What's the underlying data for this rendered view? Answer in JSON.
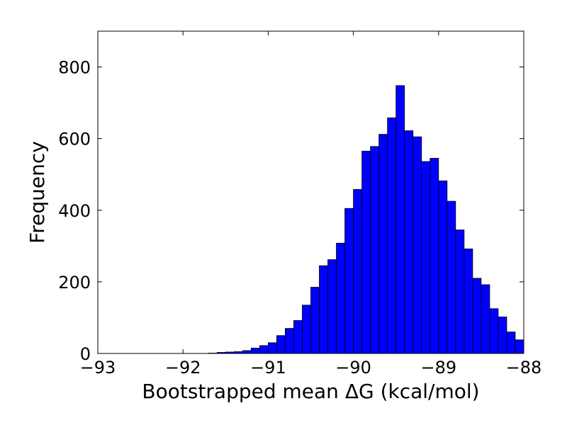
{
  "chart_data": {
    "type": "bar",
    "title": "",
    "xlabel": "Bootstrapped mean ΔG (kcal/mol)",
    "ylabel": "Frequency",
    "xlim": [
      -93,
      -88
    ],
    "ylim": [
      0,
      900
    ],
    "x_ticks": [
      -93,
      -92,
      -91,
      -90,
      -89,
      -88
    ],
    "x_tick_labels": [
      "−93",
      "−92",
      "−91",
      "−90",
      "−89",
      "−88"
    ],
    "y_ticks": [
      0,
      200,
      400,
      600,
      800
    ],
    "y_tick_labels": [
      "0",
      "200",
      "400",
      "600",
      "800"
    ],
    "bar_color": "#0000ff",
    "edge_color": "#000000",
    "grid": false,
    "bins": [
      {
        "x0": -91.7,
        "x1": -91.6,
        "count": 1
      },
      {
        "x0": -91.6,
        "x1": -91.5,
        "count": 3
      },
      {
        "x0": -91.5,
        "x1": -91.4,
        "count": 4
      },
      {
        "x0": -91.4,
        "x1": -91.3,
        "count": 5
      },
      {
        "x0": -91.3,
        "x1": -91.2,
        "count": 8
      },
      {
        "x0": -91.2,
        "x1": -91.1,
        "count": 15
      },
      {
        "x0": -91.1,
        "x1": -91.0,
        "count": 22
      },
      {
        "x0": -91.0,
        "x1": -90.9,
        "count": 30
      },
      {
        "x0": -90.9,
        "x1": -90.8,
        "count": 50
      },
      {
        "x0": -90.8,
        "x1": -90.7,
        "count": 70
      },
      {
        "x0": -90.7,
        "x1": -90.6,
        "count": 92
      },
      {
        "x0": -90.6,
        "x1": -90.5,
        "count": 135
      },
      {
        "x0": -90.5,
        "x1": -90.4,
        "count": 185
      },
      {
        "x0": -90.4,
        "x1": -90.3,
        "count": 245
      },
      {
        "x0": -90.3,
        "x1": -90.2,
        "count": 262
      },
      {
        "x0": -90.2,
        "x1": -90.1,
        "count": 308
      },
      {
        "x0": -90.1,
        "x1": -90.0,
        "count": 405
      },
      {
        "x0": -90.0,
        "x1": -89.9,
        "count": 458
      },
      {
        "x0": -89.9,
        "x1": -89.8,
        "count": 565
      },
      {
        "x0": -89.8,
        "x1": -89.7,
        "count": 578
      },
      {
        "x0": -89.7,
        "x1": -89.6,
        "count": 612
      },
      {
        "x0": -89.6,
        "x1": -89.5,
        "count": 658
      },
      {
        "x0": -89.5,
        "x1": -89.4,
        "count": 748
      },
      {
        "x0": -89.4,
        "x1": -89.3,
        "count": 622
      },
      {
        "x0": -89.3,
        "x1": -89.2,
        "count": 605
      },
      {
        "x0": -89.2,
        "x1": -89.1,
        "count": 536
      },
      {
        "x0": -89.1,
        "x1": -89.0,
        "count": 545
      },
      {
        "x0": -89.0,
        "x1": -88.9,
        "count": 482
      },
      {
        "x0": -88.9,
        "x1": -88.8,
        "count": 425
      },
      {
        "x0": -88.8,
        "x1": -88.7,
        "count": 345
      },
      {
        "x0": -88.7,
        "x1": -88.6,
        "count": 292
      },
      {
        "x0": -88.6,
        "x1": -88.5,
        "count": 210
      },
      {
        "x0": -88.5,
        "x1": -88.4,
        "count": 192
      },
      {
        "x0": -88.4,
        "x1": -88.3,
        "count": 125
      },
      {
        "x0": -88.3,
        "x1": -88.2,
        "count": 102
      },
      {
        "x0": -88.2,
        "x1": -88.1,
        "count": 60
      },
      {
        "x0": -88.1,
        "x1": -88.0,
        "count": 38
      }
    ]
  }
}
